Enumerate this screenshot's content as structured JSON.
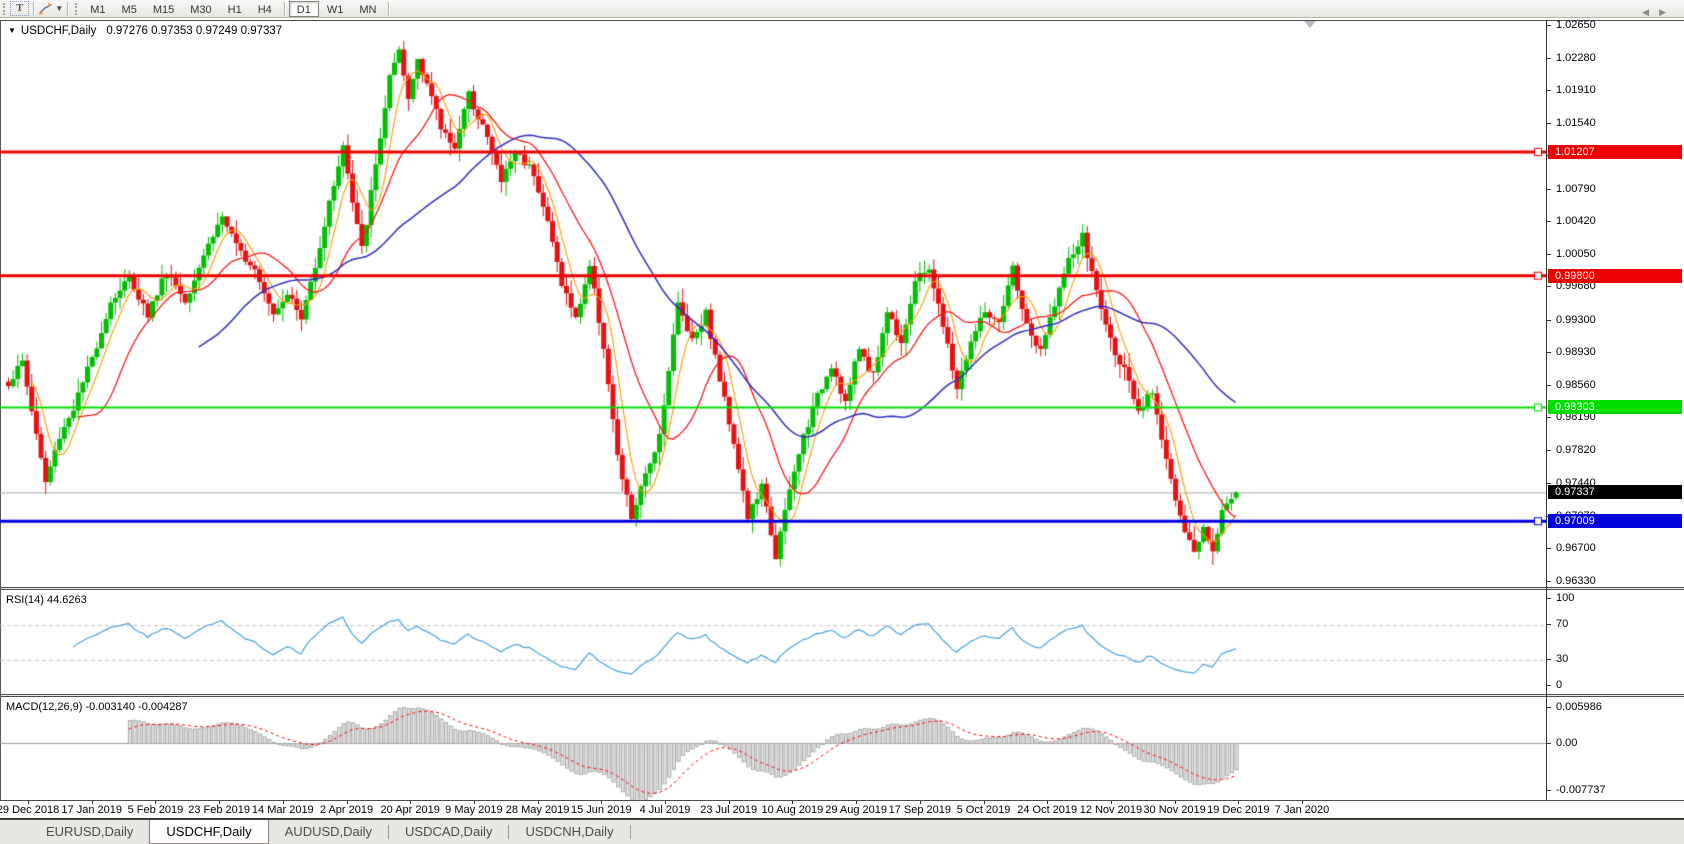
{
  "toolbar": {
    "text_tool_label": "T",
    "timeframes": [
      "M1",
      "M5",
      "M15",
      "M30",
      "H1",
      "H4",
      "D1",
      "W1",
      "MN"
    ],
    "active_timeframe": "D1"
  },
  "chart": {
    "title_symbol": "USDCHF,Daily",
    "title_quote": "0.97276 0.97353 0.97249 0.97337",
    "last_candle": {
      "o": 0.97276,
      "h": 0.97353,
      "l": 0.97249,
      "c": 0.97337
    },
    "price_max": 1.0265,
    "price_min": 0.9633,
    "price_axis_ticks": [
      "1.02650",
      "1.02280",
      "1.01910",
      "1.01540",
      "1.01170",
      "1.00790",
      "1.00420",
      "1.00050",
      "0.99680",
      "0.99300",
      "0.98930",
      "0.98560",
      "0.98190",
      "0.97820",
      "0.97440",
      "0.97070",
      "0.96700",
      "0.96330"
    ],
    "levels": [
      {
        "label": "1.01207",
        "price": 1.01207,
        "color": "#ee0000",
        "width": 3
      },
      {
        "label": "0.99800",
        "price": 0.998,
        "color": "#ee0000",
        "width": 3
      },
      {
        "label": "0.98303",
        "price": 0.98303,
        "color": "#00dd00",
        "width": 2
      },
      {
        "label": "0.97009",
        "price": 0.97009,
        "color": "#0000dd",
        "width": 3
      }
    ],
    "current_price": {
      "label": "0.97337",
      "price": 0.97337,
      "line_color": "#a8a8a8",
      "tag_bg": "#000000"
    },
    "colors": {
      "up": "#00be00",
      "down": "#e81010",
      "ma_fast": "#ff9900",
      "ma_mid": "#ff1a1a",
      "ma_slow": "#2e2ec0"
    },
    "ma_windows": {
      "fast": 6,
      "mid": 16,
      "slow": 42
    },
    "candle_count": 265,
    "close_anchors": [
      [
        0,
        0.9858
      ],
      [
        3,
        0.9882
      ],
      [
        6,
        0.98
      ],
      [
        8,
        0.9745
      ],
      [
        11,
        0.9798
      ],
      [
        14,
        0.983
      ],
      [
        18,
        0.9886
      ],
      [
        22,
        0.995
      ],
      [
        26,
        0.9978
      ],
      [
        30,
        0.9936
      ],
      [
        34,
        0.9986
      ],
      [
        38,
        0.9952
      ],
      [
        42,
        1.0005
      ],
      [
        46,
        1.0048
      ],
      [
        49,
        1.0012
      ],
      [
        53,
        0.999
      ],
      [
        57,
        0.9938
      ],
      [
        60,
        0.9962
      ],
      [
        63,
        0.993
      ],
      [
        67,
        1.0015
      ],
      [
        70,
        1.0085
      ],
      [
        72,
        1.0128
      ],
      [
        74,
        1.0062
      ],
      [
        76,
        1.001
      ],
      [
        79,
        1.0105
      ],
      [
        82,
        1.0205
      ],
      [
        84,
        1.0232
      ],
      [
        86,
        1.018
      ],
      [
        88,
        1.0228
      ],
      [
        90,
        1.02
      ],
      [
        93,
        1.0148
      ],
      [
        96,
        1.0128
      ],
      [
        99,
        1.0185
      ],
      [
        102,
        1.0152
      ],
      [
        106,
        1.0088
      ],
      [
        109,
        1.0122
      ],
      [
        113,
        1.0098
      ],
      [
        116,
        1.004
      ],
      [
        119,
        0.9972
      ],
      [
        122,
        0.993
      ],
      [
        125,
        0.9992
      ],
      [
        128,
        0.99
      ],
      [
        131,
        0.9772
      ],
      [
        134,
        0.9705
      ],
      [
        137,
        0.9752
      ],
      [
        140,
        0.98
      ],
      [
        144,
        0.9948
      ],
      [
        147,
        0.9908
      ],
      [
        150,
        0.9938
      ],
      [
        153,
        0.9862
      ],
      [
        156,
        0.9792
      ],
      [
        159,
        0.9705
      ],
      [
        162,
        0.974
      ],
      [
        165,
        0.9662
      ],
      [
        168,
        0.9735
      ],
      [
        171,
        0.9798
      ],
      [
        174,
        0.9842
      ],
      [
        177,
        0.988
      ],
      [
        180,
        0.9836
      ],
      [
        183,
        0.9898
      ],
      [
        186,
        0.9866
      ],
      [
        189,
        0.994
      ],
      [
        192,
        0.9906
      ],
      [
        195,
        0.9972
      ],
      [
        198,
        0.999
      ],
      [
        201,
        0.9922
      ],
      [
        204,
        0.9852
      ],
      [
        207,
        0.9905
      ],
      [
        210,
        0.994
      ],
      [
        213,
        0.9922
      ],
      [
        216,
        0.9988
      ],
      [
        219,
        0.9922
      ],
      [
        222,
        0.9892
      ],
      [
        225,
        0.995
      ],
      [
        228,
        0.9996
      ],
      [
        231,
        1.0024
      ],
      [
        234,
        0.9962
      ],
      [
        237,
        0.9906
      ],
      [
        240,
        0.9872
      ],
      [
        243,
        0.9822
      ],
      [
        246,
        0.985
      ],
      [
        249,
        0.9772
      ],
      [
        252,
        0.9702
      ],
      [
        255,
        0.9664
      ],
      [
        257,
        0.9696
      ],
      [
        259,
        0.9671
      ],
      [
        261,
        0.9713
      ],
      [
        264,
        0.97337
      ]
    ]
  },
  "rsi": {
    "label": "RSI(14) 44.6263",
    "period": 14,
    "axis_ticks": [
      "100",
      "70",
      "30",
      "0"
    ],
    "level_lines": [
      70,
      30
    ],
    "color": "#47a4dc"
  },
  "macd": {
    "label": "MACD(12,26,9) -0.003140 -0.004287",
    "fast": 12,
    "slow": 26,
    "signal": 9,
    "axis_ticks": [
      "0.005986",
      "0.00",
      "-0.007737"
    ],
    "axis_max": 0.005986,
    "axis_min": -0.007737,
    "hist_stroke": "#a9a9a9",
    "hist_fill": "#e2e2e2",
    "signal_color": "#ff0000"
  },
  "date_axis": {
    "labels": [
      "29 Dec 2018",
      "17 Jan 2019",
      "5 Feb 2019",
      "23 Feb 2019",
      "14 Mar 2019",
      "2 Apr 2019",
      "20 Apr 2019",
      "9 May 2019",
      "28 May 2019",
      "15 Jun 2019",
      "4 Jul 2019",
      "23 Jul 2019",
      "10 Aug 2019",
      "29 Aug 2019",
      "17 Sep 2019",
      "5 Oct 2019",
      "24 Oct 2019",
      "12 Nov 2019",
      "30 Nov 2019",
      "19 Dec 2019",
      "7 Jan 2020"
    ]
  },
  "tabs": {
    "items": [
      "EURUSD,Daily",
      "USDCHF,Daily",
      "AUDUSD,Daily",
      "USDCAD,Daily",
      "USDCNH,Daily"
    ],
    "active": "USDCHF,Daily",
    "scroll_left": "◀",
    "scroll_right": "▶"
  }
}
